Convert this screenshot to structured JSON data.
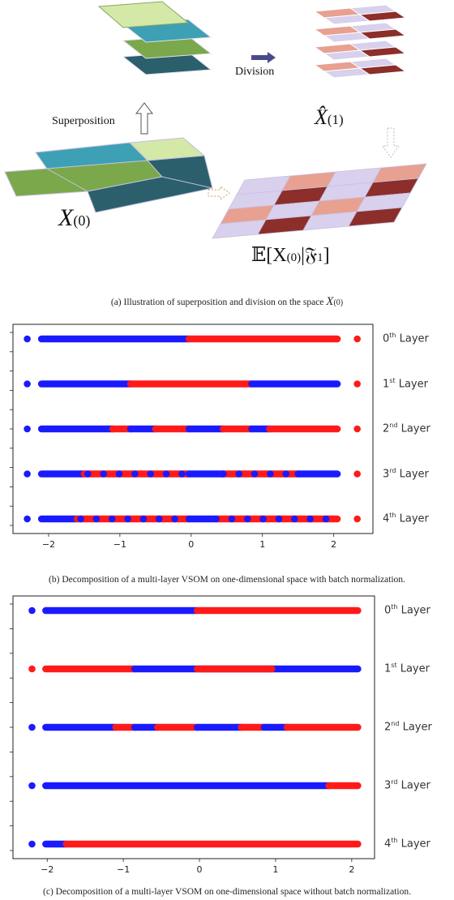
{
  "figure_a": {
    "superposition_label": "Superposition",
    "division_label": "Division",
    "x0_label": "X",
    "x0_sub": "(0)",
    "xhat_label": "X̂",
    "xhat_sub": "(1)",
    "expectation_label": "𝔼[X",
    "expectation_sub": "(0)",
    "expectation_rest": "|𝔉",
    "expectation_sub2": "1",
    "expectation_close": "]",
    "caption": "(a) Illustration of superposition and division on the space",
    "caption_math": "X",
    "caption_math_sub": "(0)"
  },
  "colors": {
    "blue": "#1a1aff",
    "red": "#ff1a1a",
    "tile_light_green": "#d4e8a8",
    "tile_teal": "#3ea0b4",
    "tile_green": "#7aa84a",
    "tile_dark_teal": "#2b5f6b",
    "tile_pink": "#e8a090",
    "tile_lavender": "#d8d0ec",
    "tile_maroon": "#8c2e2a"
  },
  "figure_b": {
    "caption": "(b) Decomposition of a multi-layer VSOM on one-dimensional space with batch normalization."
  },
  "figure_c": {
    "caption": "(c) Decomposition of a multi-layer VSOM on one-dimensional space without batch normalization."
  },
  "chart_data": [
    {
      "type": "scatter",
      "title": "",
      "xlabel": "",
      "ylabel": "",
      "xlim": [
        -2.5,
        2.55
      ],
      "xticks": [
        -2,
        -1,
        0,
        1,
        2
      ],
      "xtick_labels": [
        "−2",
        "−1",
        "0",
        "1",
        "2"
      ],
      "layers": [
        {
          "ord": "0",
          "suffix": "th",
          "name": "Layer",
          "segments": [
            [
              -2.3,
              -2.3,
              "blue"
            ],
            [
              -2.1,
              -0.03,
              "blue"
            ],
            [
              -0.03,
              2.05,
              "red"
            ],
            [
              2.33,
              2.33,
              "red"
            ]
          ]
        },
        {
          "ord": "1",
          "suffix": "st",
          "name": "Layer",
          "segments": [
            [
              -2.3,
              -2.3,
              "blue"
            ],
            [
              -2.1,
              -0.85,
              "blue"
            ],
            [
              -0.85,
              0.85,
              "red"
            ],
            [
              0.85,
              2.05,
              "blue"
            ],
            [
              2.33,
              2.33,
              "red"
            ]
          ]
        },
        {
          "ord": "2",
          "suffix": "nd",
          "name": "Layer",
          "segments": [
            [
              -2.3,
              -2.3,
              "blue"
            ],
            [
              -2.1,
              -1.1,
              "blue"
            ],
            [
              -1.1,
              -0.85,
              "red"
            ],
            [
              -0.85,
              -0.5,
              "blue"
            ],
            [
              -0.5,
              -0.03,
              "red"
            ],
            [
              -0.03,
              0.45,
              "blue"
            ],
            [
              0.45,
              0.85,
              "red"
            ],
            [
              0.85,
              1.1,
              "blue"
            ],
            [
              1.1,
              2.05,
              "red"
            ],
            [
              2.33,
              2.33,
              "red"
            ]
          ]
        },
        {
          "ord": "3",
          "suffix": "rd",
          "name": "Layer",
          "segments": [
            [
              -2.3,
              -2.3,
              "blue"
            ],
            [
              -2.1,
              -1.5,
              "blue"
            ],
            [
              -1.5,
              -0.03,
              "red"
            ],
            [
              -0.03,
              0.45,
              "blue"
            ],
            [
              0.45,
              1.5,
              "red"
            ],
            [
              1.5,
              2.05,
              "blue"
            ],
            [
              2.33,
              2.33,
              "red"
            ]
          ],
          "mixed": [
            [
              -1.45,
              -0.05
            ],
            [
              0.45,
              1.45
            ]
          ]
        },
        {
          "ord": "4",
          "suffix": "th",
          "name": "Layer",
          "segments": [
            [
              -2.3,
              -2.3,
              "blue"
            ],
            [
              -2.1,
              -1.6,
              "blue"
            ],
            [
              -1.6,
              -0.03,
              "red"
            ],
            [
              -0.03,
              0.35,
              "blue"
            ],
            [
              0.35,
              2.05,
              "red"
            ],
            [
              2.33,
              2.33,
              "red"
            ]
          ],
          "mixed": [
            [
              -1.55,
              -0.05
            ],
            [
              0.35,
              1.9
            ]
          ]
        }
      ]
    },
    {
      "type": "scatter",
      "title": "",
      "xlabel": "",
      "ylabel": "",
      "xlim": [
        -2.45,
        2.3
      ],
      "xticks": [
        -2,
        -1,
        0,
        1,
        2
      ],
      "xtick_labels": [
        "−2",
        "−1",
        "0",
        "1",
        "2"
      ],
      "layers": [
        {
          "ord": "0",
          "suffix": "th",
          "name": "Layer",
          "segments": [
            [
              -2.2,
              -2.2,
              "blue"
            ],
            [
              -2.02,
              -0.03,
              "blue"
            ],
            [
              -0.03,
              2.08,
              "red"
            ]
          ]
        },
        {
          "ord": "1",
          "suffix": "st",
          "name": "Layer",
          "segments": [
            [
              -2.2,
              -2.2,
              "red"
            ],
            [
              -2.02,
              -0.85,
              "red"
            ],
            [
              -0.85,
              0.95,
              "blue"
            ],
            [
              0.95,
              2.08,
              "blue"
            ]
          ],
          "extra": [
            [
              -0.03,
              0.95,
              "red"
            ]
          ]
        },
        {
          "ord": "2",
          "suffix": "nd",
          "name": "Layer",
          "segments": [
            [
              -2.2,
              -2.2,
              "blue"
            ],
            [
              -2.02,
              -1.1,
              "blue"
            ],
            [
              -1.1,
              -0.85,
              "red"
            ],
            [
              -0.85,
              -0.55,
              "blue"
            ],
            [
              -0.55,
              -0.03,
              "red"
            ],
            [
              -0.03,
              0.55,
              "blue"
            ],
            [
              0.55,
              0.85,
              "red"
            ],
            [
              0.85,
              1.15,
              "blue"
            ],
            [
              1.15,
              2.08,
              "red"
            ]
          ]
        },
        {
          "ord": "3",
          "suffix": "rd",
          "name": "Layer",
          "segments": [
            [
              -2.2,
              -2.2,
              "blue"
            ],
            [
              -2.02,
              1.7,
              "blue"
            ],
            [
              1.7,
              2.08,
              "red"
            ]
          ]
        },
        {
          "ord": "4",
          "suffix": "th",
          "name": "Layer",
          "segments": [
            [
              -2.2,
              -2.2,
              "blue"
            ],
            [
              -2.02,
              -1.75,
              "blue"
            ],
            [
              -1.75,
              2.08,
              "red"
            ]
          ]
        }
      ]
    }
  ]
}
